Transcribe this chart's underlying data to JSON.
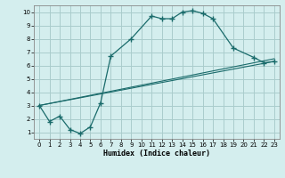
{
  "xlabel": "Humidex (Indice chaleur)",
  "bg_color": "#d4eeee",
  "grid_color": "#aacccc",
  "line_color": "#1a6b6b",
  "xlim": [
    -0.5,
    23.5
  ],
  "ylim": [
    0.5,
    10.5
  ],
  "xticks": [
    0,
    1,
    2,
    3,
    4,
    5,
    6,
    7,
    8,
    9,
    10,
    11,
    12,
    13,
    14,
    15,
    16,
    17,
    18,
    19,
    20,
    21,
    22,
    23
  ],
  "yticks": [
    1,
    2,
    3,
    4,
    5,
    6,
    7,
    8,
    9,
    10
  ],
  "line1_x": [
    0,
    1,
    2,
    3,
    4,
    5,
    6,
    7,
    9,
    11,
    12,
    13,
    14,
    15,
    16,
    17,
    19,
    21,
    22,
    23
  ],
  "line1_y": [
    3.0,
    1.8,
    2.2,
    1.2,
    0.9,
    1.4,
    3.2,
    6.7,
    8.0,
    9.7,
    9.5,
    9.5,
    10.0,
    10.1,
    9.9,
    9.5,
    7.3,
    6.6,
    6.2,
    6.3
  ],
  "line2_x": [
    0,
    23
  ],
  "line2_y": [
    3.0,
    6.5
  ],
  "line3_x": [
    0,
    23
  ],
  "line3_y": [
    3.0,
    6.3
  ]
}
